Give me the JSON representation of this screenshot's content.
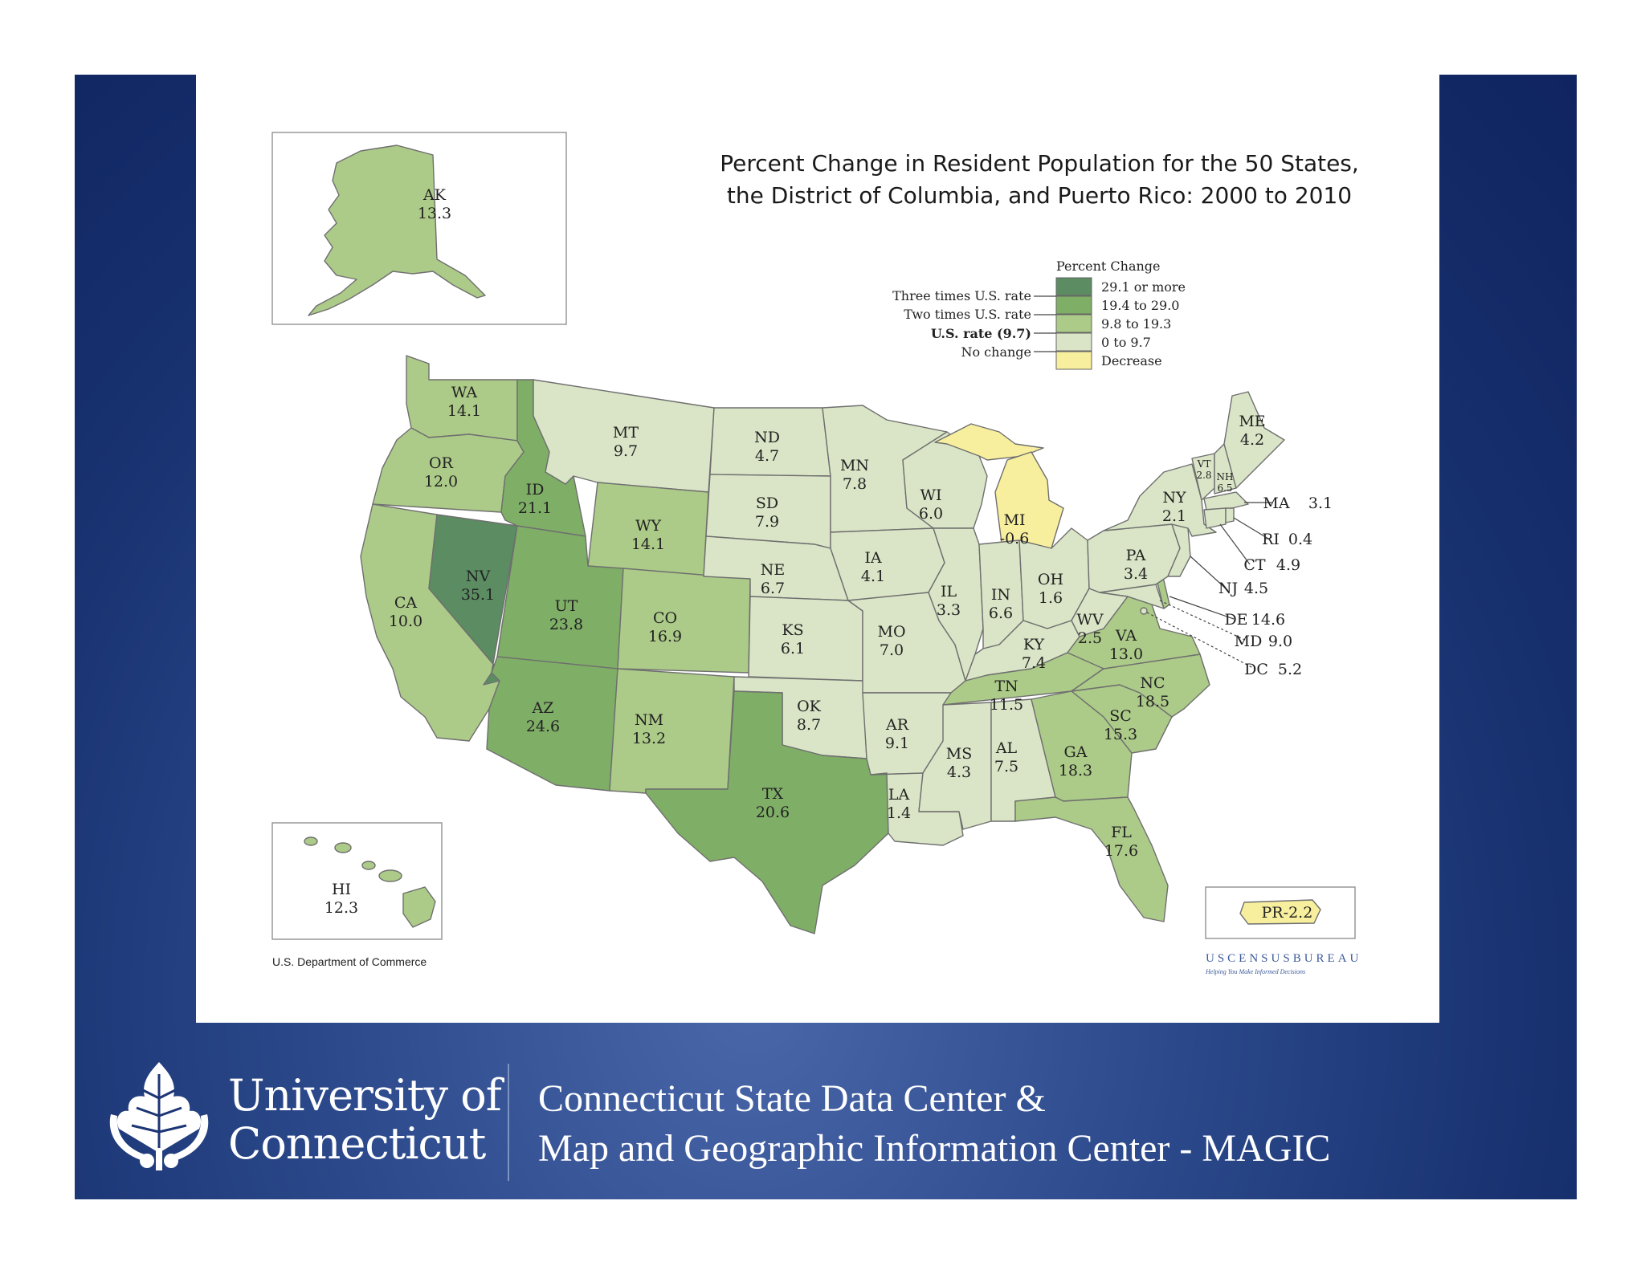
{
  "map": {
    "title_line1": "Percent Change in Resident Population for the 50 States,",
    "title_line2": "the District of Columbia, and Puerto Rico:  2000 to 2010",
    "legend": {
      "heading": "Percent Change",
      "classes": [
        {
          "label": "29.1 or more",
          "color": "#5b8c62"
        },
        {
          "label": "19.4 to 29.0",
          "color": "#7fae67"
        },
        {
          "label": "9.8 to 19.3",
          "color": "#acca88"
        },
        {
          "label": "0 to 9.7",
          "color": "#d9e5c6"
        },
        {
          "label": "Decrease",
          "color": "#f8ef9e"
        }
      ],
      "markers": {
        "three_times": "Three times U.S. rate",
        "two_times": "Two times U.S. rate",
        "us_rate": "U.S. rate (9.7)",
        "no_change": "No change"
      }
    },
    "states": [
      {
        "abbr": "AK",
        "value": "13.3"
      },
      {
        "abbr": "HI",
        "value": "12.3"
      },
      {
        "abbr": "WA",
        "value": "14.1"
      },
      {
        "abbr": "OR",
        "value": "12.0"
      },
      {
        "abbr": "CA",
        "value": "10.0"
      },
      {
        "abbr": "NV",
        "value": "35.1"
      },
      {
        "abbr": "ID",
        "value": "21.1"
      },
      {
        "abbr": "MT",
        "value": "9.7"
      },
      {
        "abbr": "WY",
        "value": "14.1"
      },
      {
        "abbr": "UT",
        "value": "23.8"
      },
      {
        "abbr": "AZ",
        "value": "24.6"
      },
      {
        "abbr": "CO",
        "value": "16.9"
      },
      {
        "abbr": "NM",
        "value": "13.2"
      },
      {
        "abbr": "ND",
        "value": "4.7"
      },
      {
        "abbr": "SD",
        "value": "7.9"
      },
      {
        "abbr": "NE",
        "value": "6.7"
      },
      {
        "abbr": "KS",
        "value": "6.1"
      },
      {
        "abbr": "OK",
        "value": "8.7"
      },
      {
        "abbr": "TX",
        "value": "20.6"
      },
      {
        "abbr": "MN",
        "value": "7.8"
      },
      {
        "abbr": "IA",
        "value": "4.1"
      },
      {
        "abbr": "MO",
        "value": "7.0"
      },
      {
        "abbr": "AR",
        "value": "9.1"
      },
      {
        "abbr": "LA",
        "value": "1.4"
      },
      {
        "abbr": "WI",
        "value": "6.0"
      },
      {
        "abbr": "IL",
        "value": "3.3"
      },
      {
        "abbr": "MI",
        "value": "-0.6"
      },
      {
        "abbr": "IN",
        "value": "6.6"
      },
      {
        "abbr": "OH",
        "value": "1.6"
      },
      {
        "abbr": "KY",
        "value": "7.4"
      },
      {
        "abbr": "TN",
        "value": "11.5"
      },
      {
        "abbr": "MS",
        "value": "4.3"
      },
      {
        "abbr": "AL",
        "value": "7.5"
      },
      {
        "abbr": "GA",
        "value": "18.3"
      },
      {
        "abbr": "FL",
        "value": "17.6"
      },
      {
        "abbr": "SC",
        "value": "15.3"
      },
      {
        "abbr": "NC",
        "value": "18.5"
      },
      {
        "abbr": "VA",
        "value": "13.0"
      },
      {
        "abbr": "WV",
        "value": "2.5"
      },
      {
        "abbr": "PA",
        "value": "3.4"
      },
      {
        "abbr": "NY",
        "value": "2.1"
      },
      {
        "abbr": "ME",
        "value": "4.2"
      },
      {
        "abbr": "VT",
        "value": "2.8"
      },
      {
        "abbr": "NH",
        "value": "6.5"
      },
      {
        "abbr": "MA",
        "value": "3.1"
      },
      {
        "abbr": "RI",
        "value": "0.4"
      },
      {
        "abbr": "CT",
        "value": "4.9"
      },
      {
        "abbr": "NJ",
        "value": "4.5"
      },
      {
        "abbr": "DE",
        "value": "14.6"
      },
      {
        "abbr": "MD",
        "value": "9.0"
      },
      {
        "abbr": "DC",
        "value": "5.2"
      },
      {
        "abbr": "PR",
        "value": "-2.2"
      }
    ],
    "source": "U.S. Department of Commerce",
    "census_logo": "USCENSUSBUREAU",
    "census_tagline": "Helping You Make Informed Decisions"
  },
  "footer": {
    "university_line1": "University of",
    "university_line2": "Connecticut",
    "center_line1": "Connecticut State Data Center &",
    "center_line2": "Map and Geographic Information Center - MAGIC"
  }
}
